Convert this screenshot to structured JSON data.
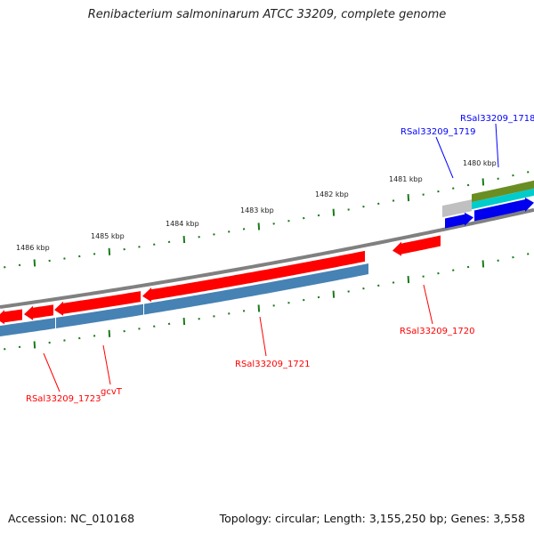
{
  "title": "Renibacterium salmoninarum ATCC 33209, complete genome",
  "footer": {
    "accession": "Accession: NC_010168",
    "topology": "Topology: circular; Length: 3,155,250 bp; Genes: 3,558"
  },
  "ruler": [
    "1486 kbp",
    "1485 kbp",
    "1484 kbp",
    "1483 kbp",
    "1482 kbp",
    "1481 kbp",
    "1480 kbp"
  ],
  "gene_labels": {
    "rsal_1718": "RSal33209_1718",
    "rsal_1719": "RSal33209_1719",
    "rsal_1720": "RSal33209_1720",
    "rsal_1721": "RSal33209_1721",
    "gcvT": "gcvT",
    "rsal_1723": "RSal33209_1723"
  },
  "colors": {
    "reverse_gene": "#ff0000",
    "forward_gene": "#0000ee",
    "cds_band": "#4682b4",
    "backbone": "#808080",
    "ticks": "#1a7a1a",
    "forward_label": "#0000ff",
    "reverse_label": "#ff0000",
    "olive": "#6b8e23",
    "cyan": "#00cccc",
    "gray_feature": "#c0c0c0"
  }
}
